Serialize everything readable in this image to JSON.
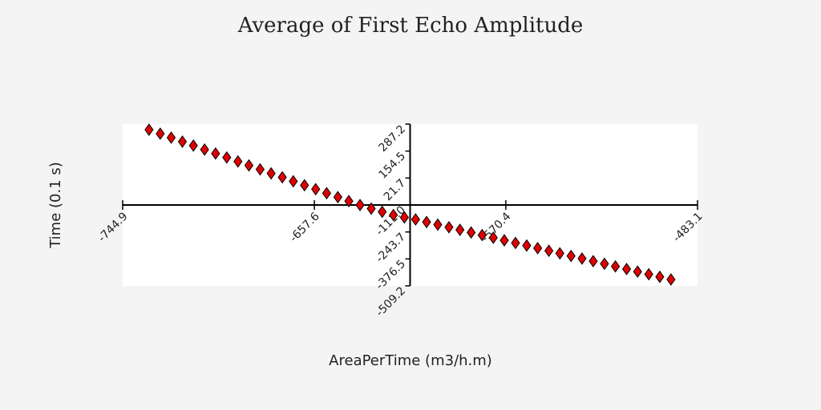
{
  "chart_data": {
    "type": "scatter",
    "title": "Average of First Echo Amplitude",
    "x_label": "AreaPerTime (m3/h.m)",
    "y_label": "Time (0.1 s)",
    "xlim": [
      -744.9,
      -483.1
    ],
    "ylim": [
      -509.2,
      287.2
    ],
    "xticks": [
      -744.9,
      -657.6,
      -570.4,
      -483.1
    ],
    "yticks": [
      287.2,
      154.5,
      21.7,
      {
        "value": -111,
        "label": "-111.0"
      },
      -243.7,
      -376.5,
      -509.2
    ],
    "series": [
      {
        "name": "Average of First Echo Amplitude",
        "color": "#e00000",
        "x": [
          -732.9,
          -727.8,
          -722.8,
          -717.7,
          -712.7,
          -707.6,
          -702.6,
          -697.5,
          -692.4,
          -687.4,
          -682.3,
          -677.3,
          -672.2,
          -667.2,
          -662.1,
          -657.0,
          -652.0,
          -646.9,
          -641.9,
          -636.8,
          -631.7,
          -626.7,
          -621.6,
          -616.6,
          -611.5,
          -606.5,
          -601.4,
          -596.3,
          -591.3,
          -586.2,
          -581.2,
          -576.1,
          -571.1,
          -566.0,
          -560.9,
          -555.9,
          -550.8,
          -545.8,
          -540.7,
          -535.7,
          -530.6,
          -525.5,
          -520.5,
          -515.4,
          -510.4,
          -505.3,
          -500.3,
          -495.2
        ],
        "values": [
          259.6,
          240.1,
          220.6,
          201.0,
          181.5,
          162.0,
          142.5,
          122.9,
          103.4,
          83.9,
          64.4,
          44.8,
          25.3,
          5.8,
          -13.7,
          -33.2,
          -52.8,
          -72.3,
          -91.8,
          -111.3,
          -128.7,
          -144.5,
          -160.3,
          -172.1,
          -182.0,
          -194.9,
          -207.7,
          -220.6,
          -233.4,
          -246.3,
          -259.1,
          -272.0,
          -284.8,
          -297.7,
          -310.5,
          -323.4,
          -336.2,
          -349.1,
          -361.9,
          -374.8,
          -387.6,
          -400.5,
          -413.3,
          -426.2,
          -439.0,
          -451.9,
          -464.7,
          -477.6
        ]
      }
    ]
  }
}
